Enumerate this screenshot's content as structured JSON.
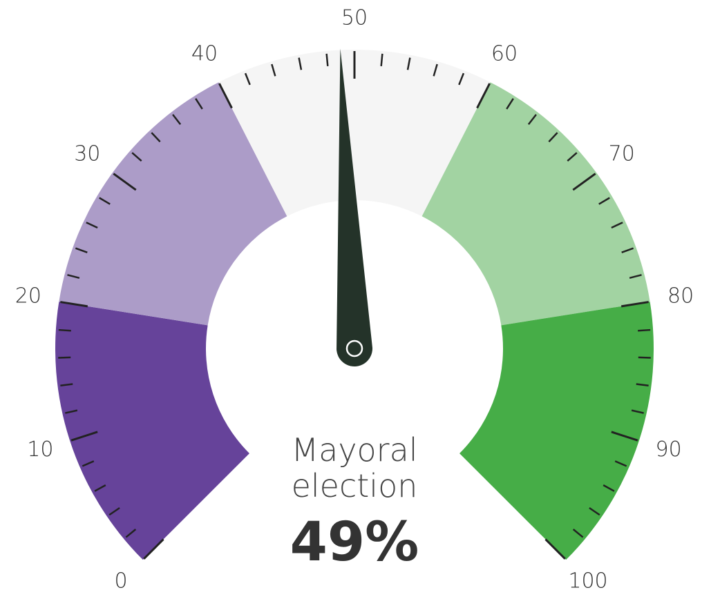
{
  "chart_data": {
    "type": "gauge",
    "title": "Mayoral election",
    "values": [
      49
    ],
    "value_labels": [
      "49%"
    ],
    "min": 0,
    "max": 100,
    "bands": [
      {
        "from": 0,
        "to": 20,
        "color": "#66439a"
      },
      {
        "from": 20,
        "to": 40,
        "color": "#ac9cc8"
      },
      {
        "from": 40,
        "to": 60,
        "color": "#f5f5f5"
      },
      {
        "from": 60,
        "to": 80,
        "color": "#a2d3a2"
      },
      {
        "from": 80,
        "to": 100,
        "color": "#46ad47"
      }
    ],
    "major_ticks": [
      0,
      10,
      20,
      30,
      40,
      50,
      60,
      70,
      80,
      90,
      100
    ],
    "minor_ticks": [
      2,
      4,
      6,
      8,
      12,
      14,
      16,
      18,
      22,
      24,
      26,
      28,
      32,
      34,
      36,
      38,
      42,
      44,
      46,
      48,
      52,
      54,
      56,
      58,
      62,
      64,
      66,
      68,
      72,
      74,
      76,
      78,
      82,
      84,
      86,
      88,
      92,
      94,
      96,
      98
    ],
    "needle_color": "#243329"
  }
}
